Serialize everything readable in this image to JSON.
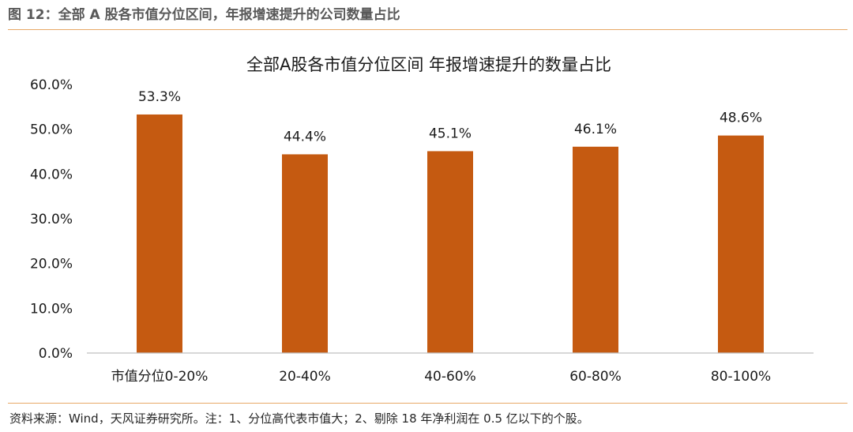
{
  "figure": {
    "title": "图 12：全部 A 股各市值分位区间，年报增速提升的公司数量占比",
    "source_note": "资料来源：Wind，天风证券研究所。注：1、分位高代表市值大；2、剔除 18 年净利润在 0.5 亿以下的个股。"
  },
  "colors": {
    "bar": "#c55a11",
    "rule": "#e8a866",
    "axis": "#bfbfbf"
  },
  "chart_data": {
    "type": "bar",
    "title": "全部A股各市值分位区间 年报增速提升的数量占比",
    "categories": [
      "市值分位0-20%",
      "20-40%",
      "40-60%",
      "60-80%",
      "80-100%"
    ],
    "values": [
      53.3,
      44.4,
      45.1,
      46.1,
      48.6
    ],
    "data_labels": [
      "53.3%",
      "44.4%",
      "45.1%",
      "46.1%",
      "48.6%"
    ],
    "ylim": [
      0,
      60
    ],
    "yticks": [
      0,
      10,
      20,
      30,
      40,
      50,
      60
    ],
    "ytick_labels": [
      "0.0%",
      "10.0%",
      "20.0%",
      "30.0%",
      "40.0%",
      "50.0%",
      "60.0%"
    ],
    "xlabel": "",
    "ylabel": "",
    "grid": false,
    "legend": "none"
  }
}
